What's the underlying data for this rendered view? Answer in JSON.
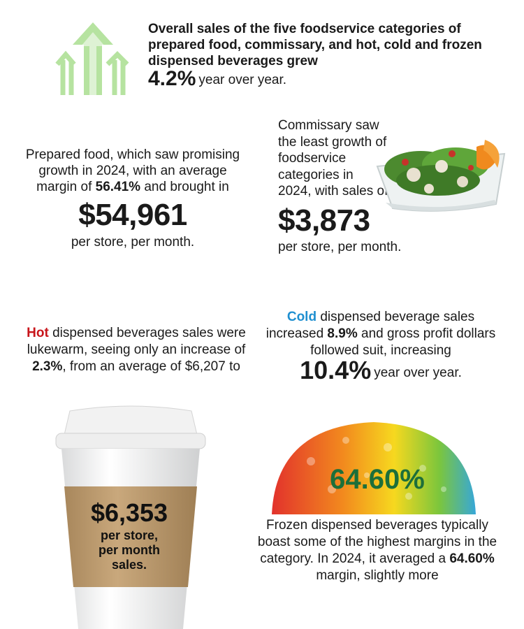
{
  "top": {
    "text": "Overall sales of the five foodservice categories of prepared food, commissary, and hot, cold and frozen dispensed beverages grew",
    "pct": "4.2%",
    "tail": "year over year."
  },
  "prepared": {
    "text1": "Prepared food, which saw promising growth in 2024, with an average margin of",
    "margin": "56.41%",
    "text2": "and brought in",
    "amount": "$54,961",
    "tail": "per store, per month."
  },
  "commissary": {
    "text1": "Commissary saw the least growth of foodservice categories in 2024, with sales of",
    "amount": "$3,873",
    "tail": "per store, per month."
  },
  "hot": {
    "word": "Hot",
    "text1": "dispensed beverages sales were lukewarm, seeing only an increase of",
    "pct": "2.3%",
    "text2": ", from an average of $6,207 to"
  },
  "cold": {
    "word": "Cold",
    "text1": "dispensed beverage sales increased",
    "pct1": "8.9%",
    "text2": "and gross profit dollars followed suit, increasing",
    "pct2": "10.4%",
    "tail": "year over year."
  },
  "cup": {
    "amount": "$6,353",
    "line1": "per store,",
    "line2": "per month",
    "line3": "sales."
  },
  "ice": {
    "pct": "64.60%"
  },
  "frozen": {
    "text1": "Frozen dispensed beverages typically boast some of the highest margins in the category. In 2024, it averaged a",
    "pct": "64.60%",
    "text2": "margin, slightly more"
  },
  "colors": {
    "hot": "#c8151b",
    "cold": "#1f8fd0",
    "ice_pct": "#1d6f3a",
    "arrows": "#b6e3a0"
  }
}
